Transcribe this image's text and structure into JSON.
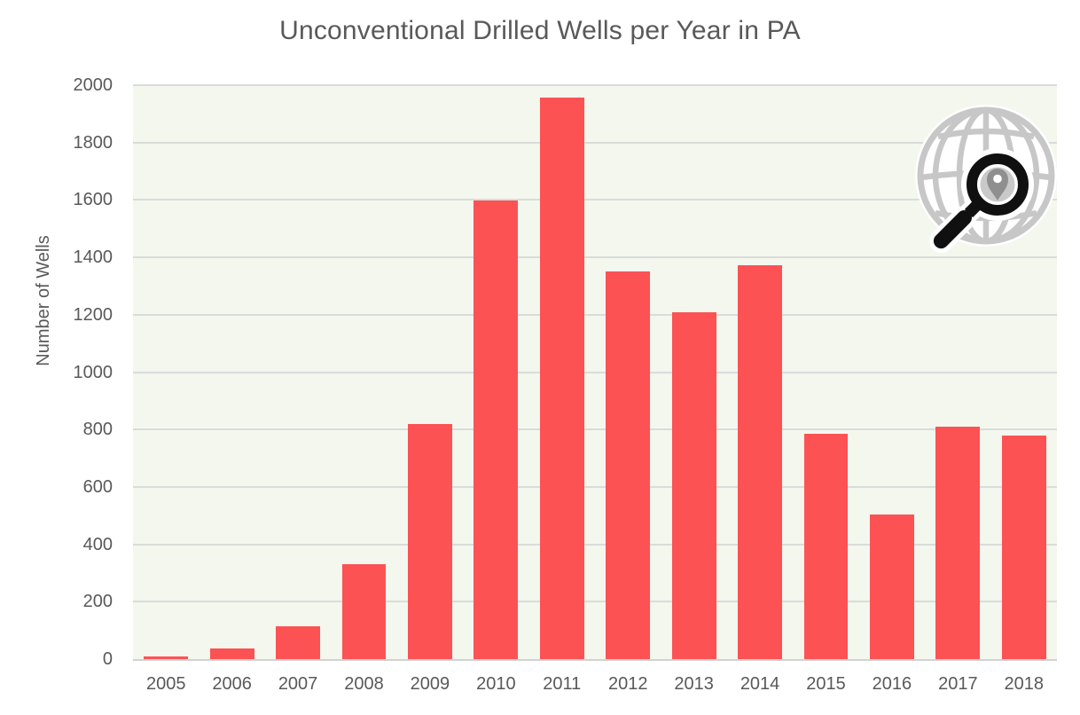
{
  "chart_data": {
    "type": "bar",
    "title": "Unconventional Drilled Wells per Year in PA",
    "xlabel": "",
    "ylabel": "Number of Wells",
    "categories": [
      "2005",
      "2006",
      "2007",
      "2008",
      "2009",
      "2010",
      "2011",
      "2012",
      "2013",
      "2014",
      "2015",
      "2016",
      "2017",
      "2018"
    ],
    "values": [
      10,
      37,
      113,
      332,
      818,
      1599,
      1956,
      1351,
      1208,
      1372,
      785,
      504,
      811,
      779
    ],
    "ylim": [
      0,
      2000
    ],
    "ytick_step": 200,
    "grid": true,
    "legend_position": "none",
    "bar_width_fraction": 0.67,
    "bar_color": "#FC5254",
    "plot_background": "#F3F7EE",
    "gridline_color": "#DBDBDB",
    "axisline_color": "#D2D2D2",
    "text_color": "#595959"
  },
  "logo": {
    "name": "globe-magnifier-location-logo",
    "globe_color": "#C7C7C7",
    "glass_color": "#101010",
    "pin_color": "#8F8F8F"
  }
}
